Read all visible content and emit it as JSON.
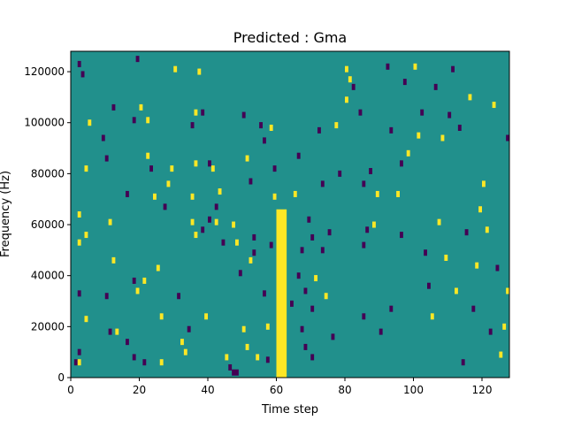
{
  "chart_data": {
    "type": "heatmap",
    "title": "Predicted : Gma",
    "xlabel": "Time step",
    "ylabel": "Frequency (Hz)",
    "xlim": [
      0,
      128
    ],
    "ylim": [
      0,
      128000
    ],
    "xticks": [
      0,
      20,
      40,
      60,
      80,
      100,
      120
    ],
    "yticks": [
      0,
      20000,
      40000,
      60000,
      80000,
      100000,
      120000
    ],
    "xtick_labels": [
      "0",
      "20",
      "40",
      "60",
      "80",
      "100",
      "120"
    ],
    "ytick_labels": [
      "0",
      "20000",
      "40000",
      "60000",
      "80000",
      "100000",
      "120000"
    ],
    "grid": false,
    "colormap": "viridis",
    "value_colors": {
      "low": "#440154",
      "mid": "#21908c",
      "high": "#fde725"
    },
    "background_value": "mid",
    "band": {
      "value": "high",
      "x_range": [
        60,
        63
      ],
      "y_range": [
        0,
        66000
      ]
    },
    "cells": [
      {
        "x": 2,
        "y": 123000,
        "v": "low"
      },
      {
        "x": 3,
        "y": 119000,
        "v": "low"
      },
      {
        "x": 1,
        "y": 6000,
        "v": "low"
      },
      {
        "x": 2,
        "y": 6000,
        "v": "high"
      },
      {
        "x": 2,
        "y": 10000,
        "v": "low"
      },
      {
        "x": 2,
        "y": 33000,
        "v": "low"
      },
      {
        "x": 2,
        "y": 53000,
        "v": "high"
      },
      {
        "x": 2,
        "y": 64000,
        "v": "high"
      },
      {
        "x": 4,
        "y": 23000,
        "v": "high"
      },
      {
        "x": 4,
        "y": 56000,
        "v": "high"
      },
      {
        "x": 4,
        "y": 82000,
        "v": "high"
      },
      {
        "x": 5,
        "y": 100000,
        "v": "high"
      },
      {
        "x": 9,
        "y": 94000,
        "v": "low"
      },
      {
        "x": 10,
        "y": 86000,
        "v": "low"
      },
      {
        "x": 11,
        "y": 61000,
        "v": "high"
      },
      {
        "x": 10,
        "y": 32000,
        "v": "low"
      },
      {
        "x": 11,
        "y": 18000,
        "v": "low"
      },
      {
        "x": 12,
        "y": 46000,
        "v": "high"
      },
      {
        "x": 13,
        "y": 18000,
        "v": "high"
      },
      {
        "x": 12,
        "y": 106000,
        "v": "low"
      },
      {
        "x": 16,
        "y": 72000,
        "v": "low"
      },
      {
        "x": 16,
        "y": 14000,
        "v": "low"
      },
      {
        "x": 18,
        "y": 8000,
        "v": "low"
      },
      {
        "x": 18,
        "y": 38000,
        "v": "low"
      },
      {
        "x": 19,
        "y": 34000,
        "v": "high"
      },
      {
        "x": 18,
        "y": 101000,
        "v": "low"
      },
      {
        "x": 20,
        "y": 106000,
        "v": "high"
      },
      {
        "x": 19,
        "y": 125000,
        "v": "low"
      },
      {
        "x": 21,
        "y": 38000,
        "v": "high"
      },
      {
        "x": 21,
        "y": 6000,
        "v": "low"
      },
      {
        "x": 22,
        "y": 101000,
        "v": "high"
      },
      {
        "x": 22,
        "y": 87000,
        "v": "high"
      },
      {
        "x": 23,
        "y": 82000,
        "v": "low"
      },
      {
        "x": 24,
        "y": 71000,
        "v": "high"
      },
      {
        "x": 25,
        "y": 43000,
        "v": "high"
      },
      {
        "x": 26,
        "y": 24000,
        "v": "high"
      },
      {
        "x": 26,
        "y": 6000,
        "v": "high"
      },
      {
        "x": 27,
        "y": 67000,
        "v": "low"
      },
      {
        "x": 28,
        "y": 76000,
        "v": "high"
      },
      {
        "x": 29,
        "y": 82000,
        "v": "high"
      },
      {
        "x": 30,
        "y": 121000,
        "v": "high"
      },
      {
        "x": 31,
        "y": 32000,
        "v": "low"
      },
      {
        "x": 32,
        "y": 14000,
        "v": "high"
      },
      {
        "x": 33,
        "y": 10000,
        "v": "high"
      },
      {
        "x": 34,
        "y": 19000,
        "v": "low"
      },
      {
        "x": 35,
        "y": 99000,
        "v": "low"
      },
      {
        "x": 35,
        "y": 71000,
        "v": "high"
      },
      {
        "x": 35,
        "y": 61000,
        "v": "high"
      },
      {
        "x": 36,
        "y": 56000,
        "v": "high"
      },
      {
        "x": 36,
        "y": 84000,
        "v": "high"
      },
      {
        "x": 36,
        "y": 104000,
        "v": "high"
      },
      {
        "x": 37,
        "y": 120000,
        "v": "high"
      },
      {
        "x": 38,
        "y": 104000,
        "v": "low"
      },
      {
        "x": 38,
        "y": 58000,
        "v": "low"
      },
      {
        "x": 39,
        "y": 24000,
        "v": "high"
      },
      {
        "x": 40,
        "y": 62000,
        "v": "low"
      },
      {
        "x": 40,
        "y": 84000,
        "v": "low"
      },
      {
        "x": 41,
        "y": 82000,
        "v": "high"
      },
      {
        "x": 42,
        "y": 67000,
        "v": "low"
      },
      {
        "x": 42,
        "y": 61000,
        "v": "high"
      },
      {
        "x": 43,
        "y": 73000,
        "v": "high"
      },
      {
        "x": 44,
        "y": 53000,
        "v": "low"
      },
      {
        "x": 45,
        "y": 8000,
        "v": "high"
      },
      {
        "x": 46,
        "y": 4000,
        "v": "low"
      },
      {
        "x": 47,
        "y": 60000,
        "v": "high"
      },
      {
        "x": 47,
        "y": 2000,
        "v": "low"
      },
      {
        "x": 48,
        "y": 53000,
        "v": "high"
      },
      {
        "x": 48,
        "y": 2000,
        "v": "low"
      },
      {
        "x": 49,
        "y": 41000,
        "v": "low"
      },
      {
        "x": 50,
        "y": 103000,
        "v": "low"
      },
      {
        "x": 50,
        "y": 19000,
        "v": "high"
      },
      {
        "x": 51,
        "y": 86000,
        "v": "high"
      },
      {
        "x": 51,
        "y": 12000,
        "v": "high"
      },
      {
        "x": 52,
        "y": 77000,
        "v": "low"
      },
      {
        "x": 52,
        "y": 46000,
        "v": "high"
      },
      {
        "x": 53,
        "y": 49000,
        "v": "low"
      },
      {
        "x": 53,
        "y": 55000,
        "v": "low"
      },
      {
        "x": 54,
        "y": 8000,
        "v": "high"
      },
      {
        "x": 55,
        "y": 99000,
        "v": "low"
      },
      {
        "x": 56,
        "y": 93000,
        "v": "low"
      },
      {
        "x": 56,
        "y": 33000,
        "v": "low"
      },
      {
        "x": 57,
        "y": 20000,
        "v": "high"
      },
      {
        "x": 57,
        "y": 7000,
        "v": "low"
      },
      {
        "x": 58,
        "y": 98000,
        "v": "high"
      },
      {
        "x": 58,
        "y": 52000,
        "v": "low"
      },
      {
        "x": 59,
        "y": 71000,
        "v": "high"
      },
      {
        "x": 59,
        "y": 82000,
        "v": "low"
      },
      {
        "x": 64,
        "y": 29000,
        "v": "low"
      },
      {
        "x": 65,
        "y": 72000,
        "v": "high"
      },
      {
        "x": 66,
        "y": 40000,
        "v": "low"
      },
      {
        "x": 66,
        "y": 87000,
        "v": "low"
      },
      {
        "x": 67,
        "y": 19000,
        "v": "low"
      },
      {
        "x": 67,
        "y": 50000,
        "v": "low"
      },
      {
        "x": 68,
        "y": 34000,
        "v": "low"
      },
      {
        "x": 68,
        "y": 12000,
        "v": "low"
      },
      {
        "x": 69,
        "y": 62000,
        "v": "low"
      },
      {
        "x": 70,
        "y": 55000,
        "v": "low"
      },
      {
        "x": 70,
        "y": 27000,
        "v": "low"
      },
      {
        "x": 70,
        "y": 8000,
        "v": "low"
      },
      {
        "x": 71,
        "y": 39000,
        "v": "high"
      },
      {
        "x": 72,
        "y": 97000,
        "v": "low"
      },
      {
        "x": 73,
        "y": 76000,
        "v": "low"
      },
      {
        "x": 73,
        "y": 50000,
        "v": "low"
      },
      {
        "x": 74,
        "y": 32000,
        "v": "high"
      },
      {
        "x": 75,
        "y": 57000,
        "v": "low"
      },
      {
        "x": 76,
        "y": 16000,
        "v": "low"
      },
      {
        "x": 77,
        "y": 99000,
        "v": "high"
      },
      {
        "x": 78,
        "y": 80000,
        "v": "low"
      },
      {
        "x": 80,
        "y": 109000,
        "v": "high"
      },
      {
        "x": 80,
        "y": 121000,
        "v": "high"
      },
      {
        "x": 81,
        "y": 117000,
        "v": "high"
      },
      {
        "x": 82,
        "y": 114000,
        "v": "low"
      },
      {
        "x": 84,
        "y": 104000,
        "v": "low"
      },
      {
        "x": 85,
        "y": 76000,
        "v": "low"
      },
      {
        "x": 85,
        "y": 52000,
        "v": "low"
      },
      {
        "x": 85,
        "y": 24000,
        "v": "low"
      },
      {
        "x": 86,
        "y": 58000,
        "v": "low"
      },
      {
        "x": 87,
        "y": 81000,
        "v": "low"
      },
      {
        "x": 88,
        "y": 60000,
        "v": "high"
      },
      {
        "x": 89,
        "y": 72000,
        "v": "high"
      },
      {
        "x": 90,
        "y": 18000,
        "v": "low"
      },
      {
        "x": 92,
        "y": 122000,
        "v": "low"
      },
      {
        "x": 93,
        "y": 97000,
        "v": "low"
      },
      {
        "x": 93,
        "y": 27000,
        "v": "low"
      },
      {
        "x": 95,
        "y": 72000,
        "v": "high"
      },
      {
        "x": 96,
        "y": 56000,
        "v": "low"
      },
      {
        "x": 96,
        "y": 84000,
        "v": "low"
      },
      {
        "x": 97,
        "y": 116000,
        "v": "low"
      },
      {
        "x": 98,
        "y": 88000,
        "v": "high"
      },
      {
        "x": 100,
        "y": 122000,
        "v": "high"
      },
      {
        "x": 101,
        "y": 95000,
        "v": "high"
      },
      {
        "x": 102,
        "y": 104000,
        "v": "low"
      },
      {
        "x": 103,
        "y": 49000,
        "v": "low"
      },
      {
        "x": 104,
        "y": 36000,
        "v": "low"
      },
      {
        "x": 105,
        "y": 24000,
        "v": "high"
      },
      {
        "x": 106,
        "y": 114000,
        "v": "low"
      },
      {
        "x": 107,
        "y": 61000,
        "v": "high"
      },
      {
        "x": 108,
        "y": 94000,
        "v": "high"
      },
      {
        "x": 109,
        "y": 47000,
        "v": "high"
      },
      {
        "x": 110,
        "y": 103000,
        "v": "low"
      },
      {
        "x": 111,
        "y": 121000,
        "v": "low"
      },
      {
        "x": 112,
        "y": 34000,
        "v": "high"
      },
      {
        "x": 113,
        "y": 98000,
        "v": "low"
      },
      {
        "x": 114,
        "y": 6000,
        "v": "low"
      },
      {
        "x": 115,
        "y": 57000,
        "v": "low"
      },
      {
        "x": 116,
        "y": 110000,
        "v": "high"
      },
      {
        "x": 117,
        "y": 27000,
        "v": "low"
      },
      {
        "x": 118,
        "y": 44000,
        "v": "high"
      },
      {
        "x": 119,
        "y": 66000,
        "v": "high"
      },
      {
        "x": 120,
        "y": 76000,
        "v": "high"
      },
      {
        "x": 121,
        "y": 58000,
        "v": "high"
      },
      {
        "x": 122,
        "y": 18000,
        "v": "low"
      },
      {
        "x": 123,
        "y": 107000,
        "v": "high"
      },
      {
        "x": 124,
        "y": 43000,
        "v": "low"
      },
      {
        "x": 125,
        "y": 9000,
        "v": "high"
      },
      {
        "x": 126,
        "y": 20000,
        "v": "high"
      },
      {
        "x": 127,
        "y": 94000,
        "v": "low"
      },
      {
        "x": 127,
        "y": 34000,
        "v": "high"
      }
    ]
  }
}
